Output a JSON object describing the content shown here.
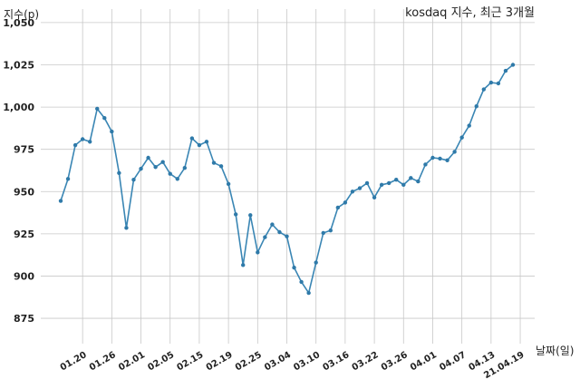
{
  "chart_data": {
    "type": "line",
    "title": "kosdaq 지수, 최근 3개월",
    "xlabel": "날짜(일)",
    "ylabel": "지수(p)",
    "ylim": [
      860,
      1058
    ],
    "y_ticks": [
      "1,050",
      "1,025",
      "1,000",
      "975",
      "950",
      "925",
      "900",
      "875"
    ],
    "y_tick_values": [
      1050,
      1025,
      1000,
      975,
      950,
      925,
      900,
      875
    ],
    "x_tick_labels": [
      "01.20",
      "01.26",
      "02.01",
      "02.05",
      "02.15",
      "02.19",
      "02.25",
      "03.04",
      "03.10",
      "03.16",
      "03.22",
      "03.26",
      "04.01",
      "04.07",
      "04.13",
      "21.04.19"
    ],
    "x_tick_index": [
      3,
      7,
      11,
      15,
      19,
      23,
      27,
      31,
      35,
      39,
      43,
      47,
      51,
      55,
      59,
      63
    ],
    "grid": true,
    "series": [
      {
        "values": [
          944.5,
          957.5,
          977.5,
          981,
          979.5,
          999,
          993.5,
          985.5,
          961,
          928.5,
          957,
          963.5,
          970,
          964.5,
          967.5,
          960.5,
          957.5,
          964,
          981.5,
          977.5,
          979.5,
          967,
          965,
          954.5,
          936.5,
          906.5,
          936,
          914,
          923,
          930.5,
          926,
          923.5,
          905,
          896.5,
          890,
          908,
          925.5,
          927,
          940.5,
          943.5,
          950,
          952,
          955,
          946.5,
          954,
          955,
          957,
          954,
          958,
          956,
          966,
          970,
          969.5,
          968.5,
          973.5,
          982,
          989,
          1000.5,
          1010.5,
          1014.5,
          1014,
          1021.5,
          1025
        ]
      }
    ]
  }
}
